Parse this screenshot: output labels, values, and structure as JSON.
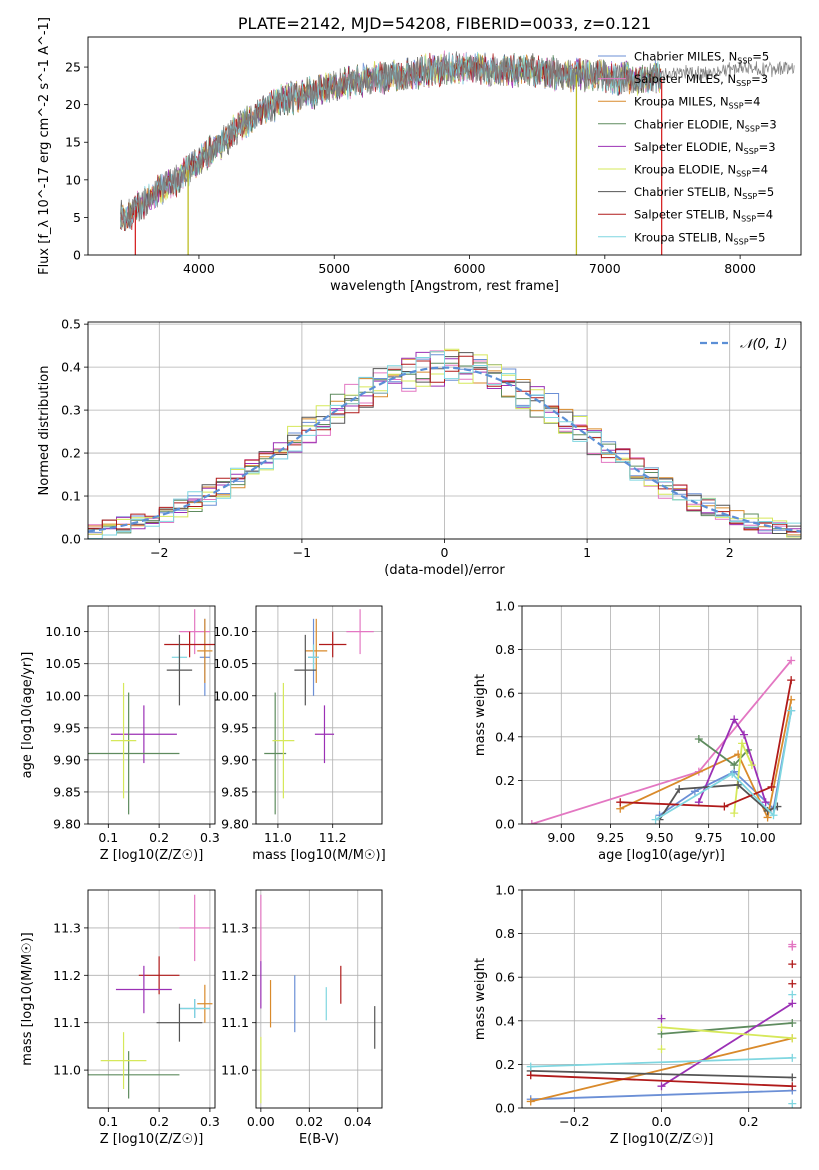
{
  "chart_data": [
    {
      "id": "spectrum",
      "type": "line",
      "title": "PLATE=2142, MJD=54208, FIBERID=0033, z=0.121",
      "xlabel": "wavelength [Angstrom, rest frame]",
      "ylabel": "Flux [f_λ 10^-17 erg cm^-2 s^-1 A^-1]",
      "xlim": [
        3180,
        8450
      ],
      "ylim": [
        0,
        29
      ],
      "xticks": [
        4000,
        5000,
        6000,
        7000,
        8000
      ],
      "yticks": [
        0,
        5,
        10,
        15,
        20,
        25
      ],
      "grid": false,
      "legend_position": "top-right",
      "continuum": {
        "x": [
          3420,
          3500,
          3600,
          3700,
          3800,
          3900,
          4000,
          4100,
          4200,
          4300,
          4400,
          4500,
          4700,
          4900,
          5100,
          5300,
          5500,
          5700,
          5900,
          6100,
          6300,
          6500,
          6700,
          6900,
          7100,
          7300,
          7420
        ],
        "y": [
          5,
          5.5,
          7,
          8.5,
          9.5,
          11,
          12.5,
          14,
          15.5,
          17,
          18.5,
          19.5,
          21,
          22,
          23,
          23.5,
          24,
          24.5,
          25,
          24.5,
          24.5,
          24.5,
          24,
          24,
          23.5,
          23.5,
          23.5
        ]
      },
      "observed_tail": {
        "x": [
          7420,
          7600,
          7800,
          8000,
          8200,
          8400
        ],
        "y": [
          23.8,
          24.3,
          24.0,
          25.1,
          24.6,
          24.9
        ]
      },
      "spikes": [
        {
          "x": 3530,
          "y": 0,
          "color": "#d62728"
        },
        {
          "x": 3920,
          "y": 0,
          "color": "#bcbd22"
        },
        {
          "x": 6790,
          "y": 0,
          "color": "#bcbd22"
        },
        {
          "x": 7420,
          "y": 0,
          "color": "#d62728"
        }
      ],
      "series": [
        {
          "name": "Chabrier MILES, N_SSP=5",
          "label_main": "Chabrier MILES, N",
          "label_sub": "SSP",
          "label_tail": "=5",
          "color": "#6b8fd6"
        },
        {
          "name": "Salpeter MILES, N_SSP=3",
          "label_main": "Salpeter MILES, N",
          "label_sub": "SSP",
          "label_tail": "=3",
          "color": "#e377c2"
        },
        {
          "name": "Kroupa MILES, N_SSP=4",
          "label_main": "Kroupa MILES, N",
          "label_sub": "SSP",
          "label_tail": "=4",
          "color": "#d98a2b"
        },
        {
          "name": "Chabrier ELODIE, N_SSP=3",
          "label_main": "Chabrier ELODIE, N",
          "label_sub": "SSP",
          "label_tail": "=3",
          "color": "#5e8b5e"
        },
        {
          "name": "Salpeter ELODIE, N_SSP=3",
          "label_main": "Salpeter ELODIE, N",
          "label_sub": "SSP",
          "label_tail": "=3",
          "color": "#9b30b5"
        },
        {
          "name": "Kroupa ELODIE, N_SSP=4",
          "label_main": "Kroupa ELODIE, N",
          "label_sub": "SSP",
          "label_tail": "=4",
          "color": "#d6e85a"
        },
        {
          "name": "Chabrier STELIB, N_SSP=5",
          "label_main": "Chabrier STELIB, N",
          "label_sub": "SSP",
          "label_tail": "=5",
          "color": "#555555"
        },
        {
          "name": "Salpeter STELIB, N_SSP=4",
          "label_main": "Salpeter STELIB, N",
          "label_sub": "SSP",
          "label_tail": "=4",
          "color": "#b01a1a"
        },
        {
          "name": "Kroupa STELIB, N_SSP=5",
          "label_main": "Kroupa STELIB, N",
          "label_sub": "SSP",
          "label_tail": "=5",
          "color": "#7fd6e0"
        }
      ]
    },
    {
      "id": "residuals",
      "type": "line",
      "title": "",
      "xlabel": "(data-model)/error",
      "ylabel": "Normed distribution",
      "xlim": [
        -2.5,
        2.5
      ],
      "ylim": [
        0,
        0.505
      ],
      "xticks": [
        -2,
        -1,
        0,
        1,
        2
      ],
      "yticks": [
        0.0,
        0.1,
        0.2,
        0.3,
        0.4,
        0.5
      ],
      "grid": true,
      "legend_position": "top-right",
      "gaussian_label": "𝒩(0, 1)",
      "gaussian": {
        "mean": 0,
        "sigma": 1,
        "color": "#5b8fd6"
      },
      "bin_width": 0.1
    },
    {
      "id": "age-vs-Z",
      "type": "scatter",
      "xlabel": "Z [log10(Z/Z☉)]",
      "ylabel": "age  [log10(age/yr)]",
      "xlim": [
        0.06,
        0.31
      ],
      "ylim": [
        9.8,
        10.14
      ],
      "xticks": [
        0.1,
        0.2,
        0.3
      ],
      "yticks": [
        9.8,
        9.85,
        9.9,
        9.95,
        10.0,
        10.05,
        10.1
      ],
      "grid": true,
      "points": [
        {
          "x": 0.27,
          "y": 10.1,
          "xerr": 0.03,
          "yerr": 0.035,
          "color": "#e377c2"
        },
        {
          "x": 0.29,
          "y": 10.06,
          "xerr": 0.01,
          "yerr": 0.06,
          "color": "#6b8fd6"
        },
        {
          "x": 0.29,
          "y": 10.07,
          "xerr": 0.015,
          "yerr": 0.05,
          "color": "#d98a2b"
        },
        {
          "x": 0.26,
          "y": 10.08,
          "xerr": 0.05,
          "yerr": 0.02,
          "color": "#b01a1a"
        },
        {
          "x": 0.24,
          "y": 10.06,
          "xerr": 0.015,
          "yerr": 0.02,
          "color": "#7fd6e0"
        },
        {
          "x": 0.24,
          "y": 10.04,
          "xerr": 0.025,
          "yerr": 0.055,
          "color": "#555555"
        },
        {
          "x": 0.17,
          "y": 9.94,
          "xerr": 0.065,
          "yerr": 0.045,
          "color": "#9b30b5"
        },
        {
          "x": 0.14,
          "y": 9.91,
          "xerr": 0.1,
          "yerr": 0.095,
          "color": "#5e8b5e"
        },
        {
          "x": 0.13,
          "y": 9.93,
          "xerr": 0.025,
          "yerr": 0.09,
          "color": "#d6e85a"
        }
      ]
    },
    {
      "id": "age-vs-mass",
      "type": "scatter",
      "xlabel": "mass [log10(M/M☉)]",
      "ylabel": "",
      "xlim": [
        10.92,
        11.38
      ],
      "ylim": [
        9.8,
        10.14
      ],
      "xticks": [
        11.0,
        11.2
      ],
      "yticks": [
        9.8,
        9.85,
        9.9,
        9.95,
        10.0,
        10.05,
        10.1
      ],
      "grid": true,
      "points": [
        {
          "x": 11.3,
          "y": 10.1,
          "xerr": 0.05,
          "yerr": 0.035,
          "color": "#e377c2"
        },
        {
          "x": 11.13,
          "y": 10.06,
          "xerr": 0.02,
          "yerr": 0.06,
          "color": "#6b8fd6"
        },
        {
          "x": 11.14,
          "y": 10.07,
          "xerr": 0.04,
          "yerr": 0.05,
          "color": "#d98a2b"
        },
        {
          "x": 11.2,
          "y": 10.08,
          "xerr": 0.05,
          "yerr": 0.02,
          "color": "#b01a1a"
        },
        {
          "x": 11.13,
          "y": 10.06,
          "xerr": 0.02,
          "yerr": 0.02,
          "color": "#7fd6e0"
        },
        {
          "x": 11.1,
          "y": 10.04,
          "xerr": 0.04,
          "yerr": 0.055,
          "color": "#555555"
        },
        {
          "x": 11.17,
          "y": 9.94,
          "xerr": 0.035,
          "yerr": 0.045,
          "color": "#9b30b5"
        },
        {
          "x": 10.99,
          "y": 9.91,
          "xerr": 0.04,
          "yerr": 0.095,
          "color": "#5e8b5e"
        },
        {
          "x": 11.02,
          "y": 9.93,
          "xerr": 0.04,
          "yerr": 0.09,
          "color": "#d6e85a"
        }
      ]
    },
    {
      "id": "weight-vs-age",
      "type": "line",
      "xlabel": "age  [log10(age/yr)]",
      "ylabel": "mass weight",
      "xlim": [
        8.8,
        10.22
      ],
      "ylim": [
        0,
        1
      ],
      "xticks": [
        9.0,
        9.25,
        9.5,
        9.75,
        10.0
      ],
      "yticks": [
        0.0,
        0.2,
        0.4,
        0.6,
        0.8,
        1.0
      ],
      "grid": true,
      "series": [
        {
          "color": "#e377c2",
          "x": [
            8.85,
            9.7,
            10.17
          ],
          "y": [
            0.0,
            0.24,
            0.75
          ]
        },
        {
          "color": "#6b8fd6",
          "x": [
            9.5,
            9.68,
            9.88,
            10.08,
            10.17
          ],
          "y": [
            0.04,
            0.15,
            0.24,
            0.07,
            0.52
          ]
        },
        {
          "color": "#d98a2b",
          "x": [
            9.3,
            9.9,
            10.05,
            10.17
          ],
          "y": [
            0.07,
            0.32,
            0.03,
            0.57
          ]
        },
        {
          "color": "#5e8b5e",
          "x": [
            9.7,
            9.88,
            9.95
          ],
          "y": [
            0.39,
            0.27,
            0.34
          ]
        },
        {
          "color": "#9b30b5",
          "x": [
            9.7,
            9.88,
            9.93,
            10.04
          ],
          "y": [
            0.1,
            0.48,
            0.41,
            0.1
          ]
        },
        {
          "color": "#d6e85a",
          "x": [
            9.88,
            9.92,
            9.97
          ],
          "y": [
            0.05,
            0.37,
            0.27
          ]
        },
        {
          "color": "#555555",
          "x": [
            9.5,
            9.6,
            9.9,
            10.05,
            10.1
          ],
          "y": [
            0.02,
            0.16,
            0.18,
            0.06,
            0.08
          ]
        },
        {
          "color": "#b01a1a",
          "x": [
            9.3,
            9.83,
            10.07,
            10.17
          ],
          "y": [
            0.1,
            0.08,
            0.17,
            0.66
          ]
        },
        {
          "color": "#7fd6e0",
          "x": [
            9.48,
            9.87,
            10.08,
            10.17
          ],
          "y": [
            0.02,
            0.23,
            0.04,
            0.52
          ]
        }
      ]
    },
    {
      "id": "mass-vs-Z",
      "type": "scatter",
      "xlabel": "Z [log10(Z/Z☉)]",
      "ylabel": "mass [log10(M/M☉)]",
      "xlim": [
        0.06,
        0.31
      ],
      "ylim": [
        10.92,
        11.38
      ],
      "xticks": [
        0.1,
        0.2,
        0.3
      ],
      "yticks": [
        11.0,
        11.1,
        11.2,
        11.3
      ],
      "grid": true,
      "points": [
        {
          "x": 0.27,
          "y": 11.3,
          "xerr": 0.03,
          "yerr": 0.07,
          "color": "#e377c2"
        },
        {
          "x": 0.27,
          "y": 11.13,
          "xerr": 0.03,
          "yerr": 0.02,
          "color": "#6b8fd6"
        },
        {
          "x": 0.29,
          "y": 11.14,
          "xerr": 0.015,
          "yerr": 0.04,
          "color": "#d98a2b"
        },
        {
          "x": 0.2,
          "y": 11.2,
          "xerr": 0.04,
          "yerr": 0.04,
          "color": "#b01a1a"
        },
        {
          "x": 0.27,
          "y": 11.13,
          "xerr": 0.03,
          "yerr": 0.02,
          "color": "#7fd6e0"
        },
        {
          "x": 0.24,
          "y": 11.1,
          "xerr": 0.045,
          "yerr": 0.04,
          "color": "#555555"
        },
        {
          "x": 0.17,
          "y": 11.17,
          "xerr": 0.055,
          "yerr": 0.05,
          "color": "#9b30b5"
        },
        {
          "x": 0.14,
          "y": 10.99,
          "xerr": 0.1,
          "yerr": 0.05,
          "color": "#5e8b5e"
        },
        {
          "x": 0.13,
          "y": 11.02,
          "xerr": 0.045,
          "yerr": 0.06,
          "color": "#d6e85a"
        }
      ]
    },
    {
      "id": "mass-vs-ebv",
      "type": "scatter",
      "xlabel": "E(B-V)",
      "ylabel": "",
      "xlim": [
        -0.002,
        0.05
      ],
      "ylim": [
        10.92,
        11.38
      ],
      "xticks": [
        0.0,
        0.02,
        0.04
      ],
      "yticks": [
        11.0,
        11.1,
        11.2,
        11.3
      ],
      "grid": true,
      "points": [
        {
          "x": 0.0,
          "y": 11.3,
          "xerr": 0,
          "yerr": 0.07,
          "color": "#e377c2"
        },
        {
          "x": 0.0,
          "y": 11.18,
          "xerr": 0,
          "yerr": 0.05,
          "color": "#9b30b5"
        },
        {
          "x": 0.0,
          "y": 11.0,
          "xerr": 0,
          "yerr": 0.07,
          "color": "#d6e85a"
        },
        {
          "x": 0.004,
          "y": 11.14,
          "xerr": 0,
          "yerr": 0.05,
          "color": "#d98a2b"
        },
        {
          "x": 0.014,
          "y": 11.14,
          "xerr": 0,
          "yerr": 0.06,
          "color": "#6b8fd6"
        },
        {
          "x": 0.027,
          "y": 11.14,
          "xerr": 0,
          "yerr": 0.035,
          "color": "#7fd6e0"
        },
        {
          "x": 0.033,
          "y": 11.18,
          "xerr": 0,
          "yerr": 0.04,
          "color": "#b01a1a"
        },
        {
          "x": 0.047,
          "y": 11.09,
          "xerr": 0,
          "yerr": 0.045,
          "color": "#555555"
        }
      ]
    },
    {
      "id": "weight-vs-Z",
      "type": "line",
      "xlabel": "Z [log10(Z/Z☉)]",
      "ylabel": "mass weight",
      "xlim": [
        -0.32,
        0.32
      ],
      "ylim": [
        0,
        1
      ],
      "xticks": [
        -0.2,
        0.0,
        0.2
      ],
      "yticks": [
        0.0,
        0.2,
        0.4,
        0.6,
        0.8,
        1.0
      ],
      "grid": true,
      "series": [
        {
          "color": "#e377c2",
          "x": [
            0.3,
            0.3
          ],
          "y": [
            0.75,
            0.74
          ]
        },
        {
          "color": "#6b8fd6",
          "x": [
            -0.3,
            0.3
          ],
          "y": [
            0.04,
            0.08
          ]
        },
        {
          "color": "#d98a2b",
          "x": [
            -0.3,
            0.3
          ],
          "y": [
            0.03,
            0.32
          ]
        },
        {
          "color": "#5e8b5e",
          "x": [
            0.0,
            0.3
          ],
          "y": [
            0.34,
            0.39
          ]
        },
        {
          "color": "#9b30b5",
          "x": [
            0.0,
            0.3
          ],
          "y": [
            0.1,
            0.48
          ]
        },
        {
          "color": "#d6e85a",
          "x": [
            0.0,
            0.3
          ],
          "y": [
            0.37,
            0.32
          ]
        },
        {
          "color": "#555555",
          "x": [
            -0.3,
            0.3
          ],
          "y": [
            0.17,
            0.14
          ]
        },
        {
          "color": "#b01a1a",
          "x": [
            -0.3,
            0.3
          ],
          "y": [
            0.15,
            0.1
          ]
        },
        {
          "color": "#7fd6e0",
          "x": [
            -0.3,
            0.3
          ],
          "y": [
            0.19,
            0.23
          ]
        }
      ],
      "markers": [
        {
          "x": 0.0,
          "y": 0.41,
          "color": "#9b30b5"
        },
        {
          "x": 0.0,
          "y": 0.27,
          "color": "#d6e85a"
        },
        {
          "x": 0.3,
          "y": 0.66,
          "color": "#b01a1a"
        },
        {
          "x": 0.3,
          "y": 0.57,
          "color": "#b01a1a"
        },
        {
          "x": 0.3,
          "y": 0.52,
          "color": "#7fd6e0"
        },
        {
          "x": 0.3,
          "y": 0.02,
          "color": "#7fd6e0"
        }
      ]
    }
  ]
}
